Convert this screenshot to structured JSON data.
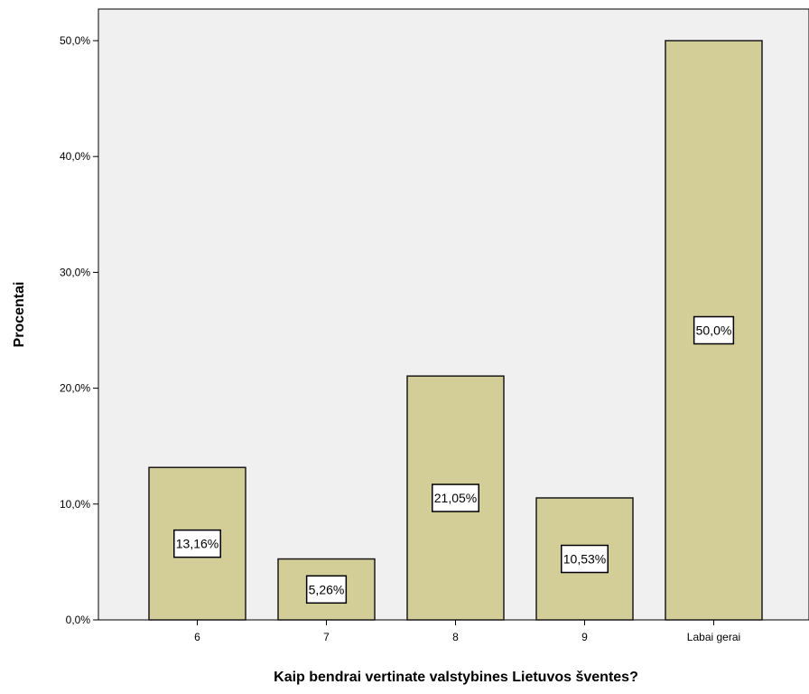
{
  "chart_data": {
    "type": "bar",
    "title": "",
    "xlabel": "Kaip bendrai vertinate valstybines Lietuvos šventes?",
    "ylabel": "Procentai",
    "categories": [
      "6",
      "7",
      "8",
      "9",
      "Labai gerai"
    ],
    "values": [
      13.16,
      5.26,
      21.05,
      10.53,
      50.0
    ],
    "data_labels": [
      "13,16%",
      "5,26%",
      "21,05%",
      "10,53%",
      "50,0%"
    ],
    "ylim": [
      0,
      50
    ],
    "yticks": [
      0,
      10,
      20,
      30,
      40,
      50
    ],
    "ytick_labels": [
      "0,0%",
      "10,0%",
      "20,0%",
      "30,0%",
      "40,0%",
      "50,0%"
    ],
    "grid": false,
    "legend": "none",
    "colors": {
      "bar_fill": "#d3ce97",
      "bar_stroke": "#1a1a1a",
      "plot_background": "#f0f0f0",
      "label_box": "#ffffff"
    }
  }
}
